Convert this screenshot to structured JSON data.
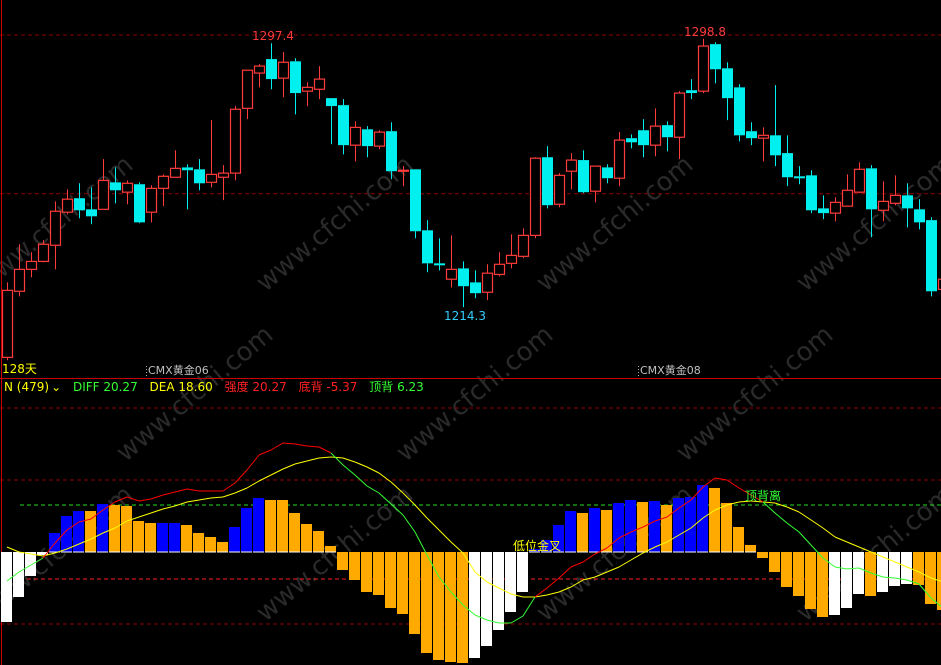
{
  "watermark": "www.cfchi.com",
  "price_panel": {
    "period_label": "128天",
    "contract_labels": [
      "CMX黄金06",
      "CMX黄金08"
    ],
    "high_label_1": "1297.4",
    "high_label_2": "1298.8",
    "low_label": "1214.3"
  },
  "indicator_header": {
    "name": "N (479)",
    "dropdown_icon": "chevron-down-icon",
    "diff": "DIFF 20.27",
    "dea": "DEA 18.60",
    "strength": "强度 20.27",
    "bottom_div": "底背 -5.37",
    "top_div": "顶背 6.23"
  },
  "annotations": {
    "golden_cross": "低位金叉",
    "top_divergence": "顶背离"
  },
  "colors": {
    "up": "#ff3b3b",
    "down": "#00f0f0",
    "diff_above": "#ff0000",
    "diff_below": "#33ff33",
    "dea": "#ffff00",
    "hist_blue": "#0000ff",
    "hist_orange": "#ffaa00",
    "hist_white": "#ffffff",
    "grid": "#8b0000"
  },
  "chart_data": [
    {
      "type": "candlestick",
      "ylim": [
        1192,
        1311
      ],
      "gridlines": [
        1300,
        1250
      ],
      "fields": [
        "open",
        "high",
        "low",
        "close"
      ],
      "candles": [
        [
          1198.5,
          1222.1,
          1197.6,
          1219.6
        ],
        [
          1219.3,
          1234.1,
          1217.7,
          1226.2
        ],
        [
          1226.2,
          1231.6,
          1223.7,
          1228.7
        ],
        [
          1228.7,
          1235.4,
          1228.4,
          1234.1
        ],
        [
          1233.8,
          1247.6,
          1226.2,
          1244.5
        ],
        [
          1244.2,
          1251.4,
          1243.5,
          1248.3
        ],
        [
          1248.6,
          1253.3,
          1242.3,
          1244.8
        ],
        [
          1245.1,
          1252.0,
          1240.4,
          1242.9
        ],
        [
          1245.1,
          1260.9,
          1245.1,
          1254.2
        ],
        [
          1253.6,
          1258.3,
          1247.0,
          1251.1
        ],
        [
          1250.5,
          1254.2,
          1246.7,
          1253.3
        ],
        [
          1253.0,
          1253.6,
          1240.7,
          1241.0
        ],
        [
          1244.2,
          1252.7,
          1241.0,
          1251.7
        ],
        [
          1251.7,
          1256.1,
          1246.1,
          1255.5
        ],
        [
          1255.2,
          1263.7,
          1255.2,
          1258.0
        ],
        [
          1258.3,
          1259.3,
          1245.1,
          1257.4
        ],
        [
          1257.7,
          1260.9,
          1251.1,
          1253.3
        ],
        [
          1253.6,
          1273.2,
          1252.0,
          1256.1
        ],
        [
          1255.2,
          1259.0,
          1248.0,
          1256.5
        ],
        [
          1256.5,
          1277.6,
          1254.2,
          1276.6
        ],
        [
          1276.9,
          1288.9,
          1273.5,
          1288.9
        ],
        [
          1288.0,
          1290.8,
          1283.5,
          1290.2
        ],
        [
          1292.4,
          1297.4,
          1282.9,
          1286.1
        ],
        [
          1286.4,
          1294.6,
          1280.4,
          1291.4
        ],
        [
          1291.7,
          1292.7,
          1275.0,
          1281.7
        ],
        [
          1282.3,
          1285.1,
          1277.6,
          1283.5
        ],
        [
          1282.9,
          1290.2,
          1279.8,
          1286.1
        ],
        [
          1280.1,
          1280.1,
          1265.6,
          1277.6
        ],
        [
          1277.9,
          1279.8,
          1262.4,
          1265.3
        ],
        [
          1265.3,
          1272.8,
          1260.2,
          1270.9
        ],
        [
          1270.3,
          1271.3,
          1261.5,
          1265.0
        ],
        [
          1265.0,
          1270.0,
          1264.0,
          1269.4
        ],
        [
          1269.7,
          1272.5,
          1254.6,
          1257.1
        ],
        [
          1257.2,
          1258.7,
          1252.4,
          1257.4
        ],
        [
          1257.7,
          1257.7,
          1236.0,
          1238.2
        ],
        [
          1238.5,
          1241.7,
          1225.3,
          1228.1
        ],
        [
          1228.1,
          1236.0,
          1225.9,
          1227.9
        ],
        [
          1223.1,
          1236.9,
          1220.5,
          1226.2
        ],
        [
          1226.5,
          1228.7,
          1214.3,
          1220.9
        ],
        [
          1222.1,
          1225.9,
          1217.1,
          1218.7
        ],
        [
          1219.0,
          1227.8,
          1216.5,
          1225.0
        ],
        [
          1224.6,
          1231.6,
          1224.0,
          1227.8
        ],
        [
          1228.1,
          1237.2,
          1226.5,
          1230.6
        ],
        [
          1230.3,
          1239.1,
          1229.7,
          1236.9
        ],
        [
          1236.9,
          1261.5,
          1236.0,
          1261.2
        ],
        [
          1261.5,
          1265.0,
          1245.4,
          1246.4
        ],
        [
          1246.7,
          1256.5,
          1245.7,
          1255.8
        ],
        [
          1257.1,
          1262.8,
          1251.4,
          1260.6
        ],
        [
          1260.6,
          1263.7,
          1250.2,
          1250.5
        ],
        [
          1250.8,
          1258.7,
          1247.3,
          1258.7
        ],
        [
          1258.3,
          1259.3,
          1253.3,
          1254.9
        ],
        [
          1254.9,
          1269.4,
          1252.4,
          1266.9
        ],
        [
          1267.5,
          1268.7,
          1264.3,
          1266.2
        ],
        [
          1270.0,
          1273.5,
          1261.5,
          1265.3
        ],
        [
          1265.3,
          1276.9,
          1261.8,
          1271.3
        ],
        [
          1271.6,
          1272.8,
          1263.4,
          1267.8
        ],
        [
          1267.8,
          1282.3,
          1260.9,
          1281.7
        ],
        [
          1282.6,
          1286.1,
          1279.8,
          1281.7
        ],
        [
          1282.3,
          1298.8,
          1281.7,
          1296.5
        ],
        [
          1297.1,
          1297.7,
          1284.8,
          1289.2
        ],
        [
          1289.5,
          1291.4,
          1273.2,
          1280.1
        ],
        [
          1283.5,
          1284.5,
          1266.5,
          1268.4
        ],
        [
          1269.7,
          1272.5,
          1265.3,
          1267.5
        ],
        [
          1267.5,
          1270.9,
          1260.2,
          1268.4
        ],
        [
          1268.4,
          1284.2,
          1258.7,
          1262.1
        ],
        [
          1262.8,
          1268.4,
          1252.4,
          1255.2
        ],
        [
          1255.5,
          1258.7,
          1253.0,
          1255.3
        ],
        [
          1255.8,
          1257.4,
          1243.9,
          1244.8
        ],
        [
          1245.4,
          1249.5,
          1242.0,
          1243.9
        ],
        [
          1243.9,
          1248.9,
          1241.3,
          1247.3
        ],
        [
          1246.1,
          1256.1,
          1246.1,
          1251.1
        ],
        [
          1250.5,
          1259.9,
          1250.2,
          1257.7
        ],
        [
          1258.0,
          1259.0,
          1236.3,
          1245.1
        ],
        [
          1244.8,
          1253.9,
          1241.3,
          1247.6
        ],
        [
          1247.0,
          1255.8,
          1246.4,
          1249.5
        ],
        [
          1249.5,
          1253.3,
          1239.4,
          1245.4
        ],
        [
          1245.1,
          1248.3,
          1238.8,
          1241.0
        ],
        [
          1241.7,
          1242.6,
          1217.7,
          1219.3
        ],
        [
          1219.9,
          1223.1,
          1219.9,
          1223.1
        ]
      ]
    },
    {
      "type": "macd",
      "ylim": [
        -113,
        174
      ],
      "levels": [
        144,
        72,
        -72
      ],
      "level_green": 47,
      "level_red": -27,
      "diff": [
        -29,
        -20,
        -13,
        -6,
        9,
        22,
        30,
        33,
        42,
        50,
        55,
        51,
        53,
        57,
        60,
        63,
        61,
        61,
        61,
        69,
        82,
        97,
        102,
        109,
        108,
        106,
        105,
        99,
        87,
        77,
        66,
        59,
        48,
        37,
        20,
        -3,
        -25,
        -40,
        -53,
        -63,
        -68,
        -71,
        -71,
        -64,
        -45,
        -36,
        -26,
        -15,
        -10,
        -2,
        4,
        14,
        20,
        25,
        31,
        35,
        44,
        52,
        65,
        74,
        72,
        64,
        57,
        50,
        39,
        29,
        20,
        7,
        -6,
        -15,
        -17,
        -16,
        -21,
        -25,
        -26,
        -28,
        -32,
        -46,
        -56
      ],
      "dea": [
        5,
        0,
        -2,
        -4,
        -1,
        3,
        8,
        13,
        19,
        24,
        31,
        35,
        39,
        43,
        46,
        50,
        52,
        54,
        55,
        59,
        64,
        71,
        77,
        83,
        88,
        91,
        94,
        95,
        94,
        90,
        85,
        79,
        70,
        59,
        47,
        34,
        22,
        10,
        -1,
        -20,
        -30,
        -36,
        -42,
        -45,
        -45,
        -43,
        -40,
        -35,
        -28,
        -25,
        -20,
        -15,
        -8,
        -1,
        5,
        10,
        17,
        24,
        34,
        42,
        47,
        50,
        51,
        50,
        49,
        45,
        40,
        32,
        24,
        15,
        10,
        5,
        0,
        -5,
        -10,
        -15,
        -20,
        -26,
        -30
      ],
      "histogram": [
        -70,
        -45,
        -24,
        -3,
        19,
        36,
        41,
        41,
        48,
        47,
        46,
        31,
        29,
        29,
        29,
        27,
        19,
        15,
        10,
        25,
        44,
        54,
        52,
        52,
        39,
        28,
        21,
        6,
        -18,
        -28,
        -40,
        -43,
        -56,
        -62,
        -82,
        -101,
        -108,
        -110,
        -111,
        -106,
        -94,
        -78,
        -60,
        -40,
        3,
        12,
        27,
        41,
        39,
        44,
        42,
        49,
        52,
        50,
        51,
        47,
        54,
        55,
        67,
        64,
        49,
        25,
        7,
        -6,
        -20,
        -35,
        -44,
        -57,
        -65,
        -63,
        -56,
        -42,
        -44,
        -40,
        -34,
        -32,
        -33,
        -52,
        -58
      ],
      "histogram_colors": [
        "W",
        "W",
        "W",
        "W",
        "B",
        "B",
        "B",
        "O",
        "B",
        "O",
        "O",
        "O",
        "O",
        "B",
        "B",
        "O",
        "O",
        "O",
        "O",
        "B",
        "B",
        "B",
        "O",
        "O",
        "O",
        "O",
        "O",
        "O",
        "O",
        "O",
        "O",
        "O",
        "O",
        "O",
        "O",
        "O",
        "O",
        "O",
        "O",
        "W",
        "W",
        "W",
        "W",
        "W",
        "B",
        "B",
        "B",
        "B",
        "O",
        "B",
        "O",
        "B",
        "B",
        "O",
        "B",
        "O",
        "B",
        "B",
        "B",
        "O",
        "O",
        "O",
        "O",
        "O",
        "O",
        "O",
        "O",
        "O",
        "O",
        "W",
        "W",
        "W",
        "O",
        "W",
        "W",
        "W",
        "O",
        "O",
        "O"
      ]
    }
  ]
}
